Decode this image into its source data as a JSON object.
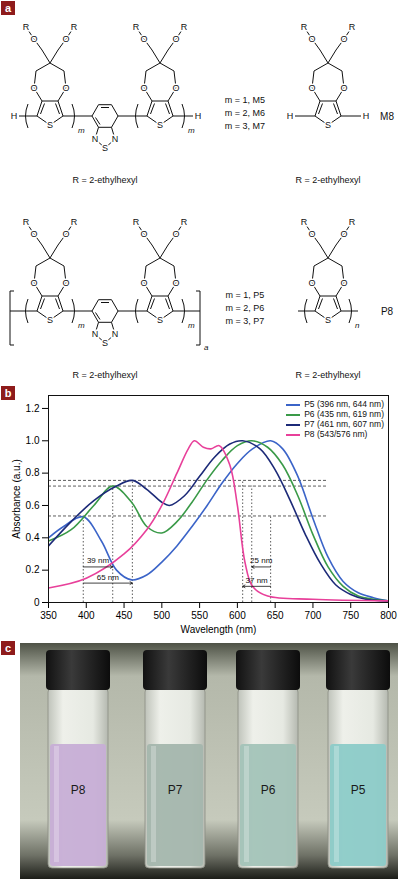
{
  "panel_a": {
    "label": "a",
    "atoms": {
      "oxygen": "O",
      "sulfur": "S",
      "nitrogen": "N",
      "hydrogen": "H",
      "substituent": "R"
    },
    "repeat_subscript": "m",
    "monomer_labels": [
      "m = 1, M5",
      "m = 2, M6",
      "m = 3, M7"
    ],
    "single_monomer": "M8",
    "polymer_labels": [
      "m = 1, P5",
      "m = 2, P6",
      "m = 3, P7"
    ],
    "polymer_subscript": "a",
    "single_polymer": "P8",
    "single_polymer_subscript": "n",
    "r_definition": "R = 2-ethylhexyl"
  },
  "panel_b": {
    "label": "b"
  },
  "chart_data": {
    "type": "line",
    "x_label": "Wavelength (nm)",
    "y_label": "Absorbance (a.u.)",
    "xlim": [
      350,
      800
    ],
    "ylim": [
      0,
      1.28
    ],
    "xticks": [
      350,
      400,
      450,
      500,
      550,
      600,
      650,
      700,
      750,
      800
    ],
    "yticks": [
      0,
      0.2,
      0.4,
      0.6,
      0.8,
      {
        "value": 1,
        "label": "1.0"
      },
      1.2
    ],
    "legend": "upper right",
    "series": [
      {
        "name": "P5 (396 nm, 644 nm)",
        "color": "#3b64c8",
        "x": [
          350,
          370,
          396,
          420,
          440,
          460,
          480,
          500,
          520,
          540,
          560,
          580,
          600,
          620,
          644,
          660,
          680,
          700,
          720,
          740,
          760,
          780,
          800
        ],
        "values": [
          0.4,
          0.47,
          0.53,
          0.38,
          0.2,
          0.14,
          0.17,
          0.25,
          0.35,
          0.47,
          0.6,
          0.74,
          0.86,
          0.95,
          1.0,
          0.95,
          0.78,
          0.52,
          0.28,
          0.13,
          0.06,
          0.03,
          0.01
        ]
      },
      {
        "name": "P6 (435 nm, 619 nm)",
        "color": "#3a9a48",
        "x": [
          350,
          380,
          410,
          435,
          460,
          480,
          500,
          520,
          540,
          560,
          580,
          600,
          619,
          640,
          660,
          680,
          700,
          720,
          740,
          760,
          780,
          800
        ],
        "values": [
          0.38,
          0.45,
          0.6,
          0.72,
          0.62,
          0.47,
          0.43,
          0.5,
          0.62,
          0.76,
          0.88,
          0.97,
          1.0,
          0.96,
          0.85,
          0.66,
          0.42,
          0.22,
          0.1,
          0.04,
          0.02,
          0.01
        ]
      },
      {
        "name": "P7 (461 nm, 607 nm)",
        "color": "#1c2a78",
        "x": [
          350,
          380,
          410,
          440,
          461,
          480,
          500,
          510,
          530,
          550,
          570,
          590,
          607,
          630,
          650,
          670,
          690,
          710,
          730,
          750,
          770,
          800
        ],
        "values": [
          0.35,
          0.5,
          0.63,
          0.72,
          0.755,
          0.7,
          0.62,
          0.6,
          0.66,
          0.78,
          0.9,
          0.98,
          1.0,
          0.95,
          0.82,
          0.63,
          0.42,
          0.24,
          0.11,
          0.05,
          0.02,
          0.01
        ]
      },
      {
        "name": "P8 (543/576 nm)",
        "color": "#e8409a",
        "x": [
          350,
          400,
          450,
          480,
          500,
          520,
          535,
          543,
          555,
          565,
          576,
          590,
          600,
          610,
          620,
          640,
          700,
          800
        ],
        "values": [
          0.09,
          0.15,
          0.3,
          0.45,
          0.6,
          0.8,
          0.95,
          1.0,
          0.96,
          0.95,
          0.97,
          0.85,
          0.6,
          0.25,
          0.1,
          0.04,
          0.02,
          0.01
        ]
      }
    ],
    "reference_lines": {
      "horizontal": [
        0.535,
        0.72,
        0.755
      ],
      "horizontal_span": [
        350,
        720
      ],
      "vertical": [
        {
          "x": 396,
          "y": 0.535
        },
        {
          "x": 435,
          "y": 0.72
        },
        {
          "x": 461,
          "y": 0.755
        },
        {
          "x": 607,
          "y": 0.755
        },
        {
          "x": 619,
          "y": 0.72
        },
        {
          "x": 644,
          "y": 0.535
        }
      ]
    },
    "annotations": [
      {
        "text": "39 nm",
        "x1": 396,
        "x2": 435,
        "y": 0.22
      },
      {
        "text": "65 nm",
        "x1": 396,
        "x2": 461,
        "y": 0.12
      },
      {
        "text": "25 nm",
        "x1": 644,
        "x2": 619,
        "y": 0.22
      },
      {
        "text": "37 nm",
        "x1": 644,
        "x2": 607,
        "y": 0.1
      }
    ]
  },
  "panel_c": {
    "label": "c",
    "vials": [
      {
        "label": "P8",
        "color": "#c7aed6"
      },
      {
        "label": "P7",
        "color": "#a4b6ad"
      },
      {
        "label": "P6",
        "color": "#a3c3b8"
      },
      {
        "label": "P5",
        "color": "#8ccbc8"
      }
    ]
  }
}
